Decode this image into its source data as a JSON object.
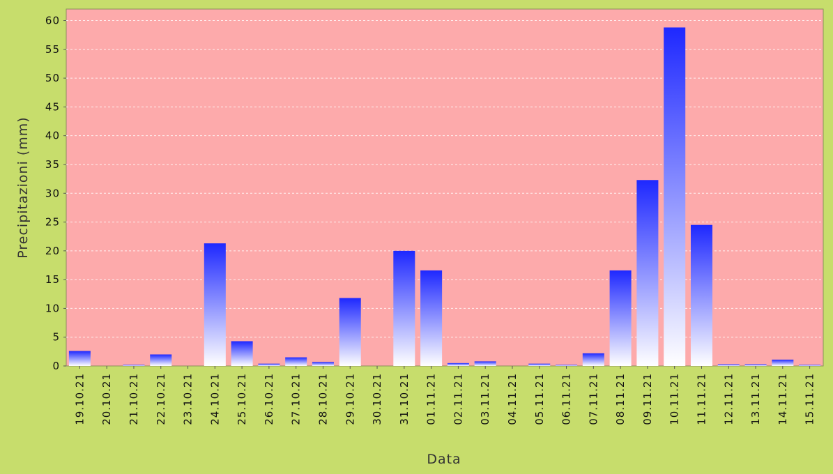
{
  "colors": {
    "background": "#c7dd6c",
    "plot_background": "#fdaaab",
    "bar_top": "#1e28ff",
    "bar_bottom": "#ffffff",
    "grid": "#ffffff"
  },
  "chart_data": {
    "type": "bar",
    "xlabel": "Data",
    "ylabel": "Precipitazioni (mm)",
    "ylim": [
      0,
      62
    ],
    "yticks": [
      0,
      5,
      10,
      15,
      20,
      25,
      30,
      35,
      40,
      45,
      50,
      55,
      60
    ],
    "grid": true,
    "categories": [
      "19.10.21",
      "20.10.21",
      "21.10.21",
      "22.10.21",
      "23.10.21",
      "24.10.21",
      "25.10.21",
      "26.10.21",
      "27.10.21",
      "28.10.21",
      "29.10.21",
      "30.10.21",
      "31.10.21",
      "01.11.21",
      "02.11.21",
      "03.11.21",
      "04.11.21",
      "05.11.21",
      "06.11.21",
      "07.11.21",
      "08.11.21",
      "09.11.21",
      "10.11.21",
      "11.11.21",
      "12.11.21",
      "13.11.21",
      "14.11.21",
      "15.11.21"
    ],
    "values": [
      2.6,
      0,
      0.2,
      2.0,
      0,
      21.3,
      4.3,
      0.4,
      1.5,
      0.7,
      11.8,
      0,
      20.0,
      16.6,
      0.5,
      0.8,
      0,
      0.4,
      0.2,
      2.2,
      16.6,
      32.3,
      58.8,
      24.5,
      0.3,
      0.3,
      1.1,
      0.2
    ]
  }
}
